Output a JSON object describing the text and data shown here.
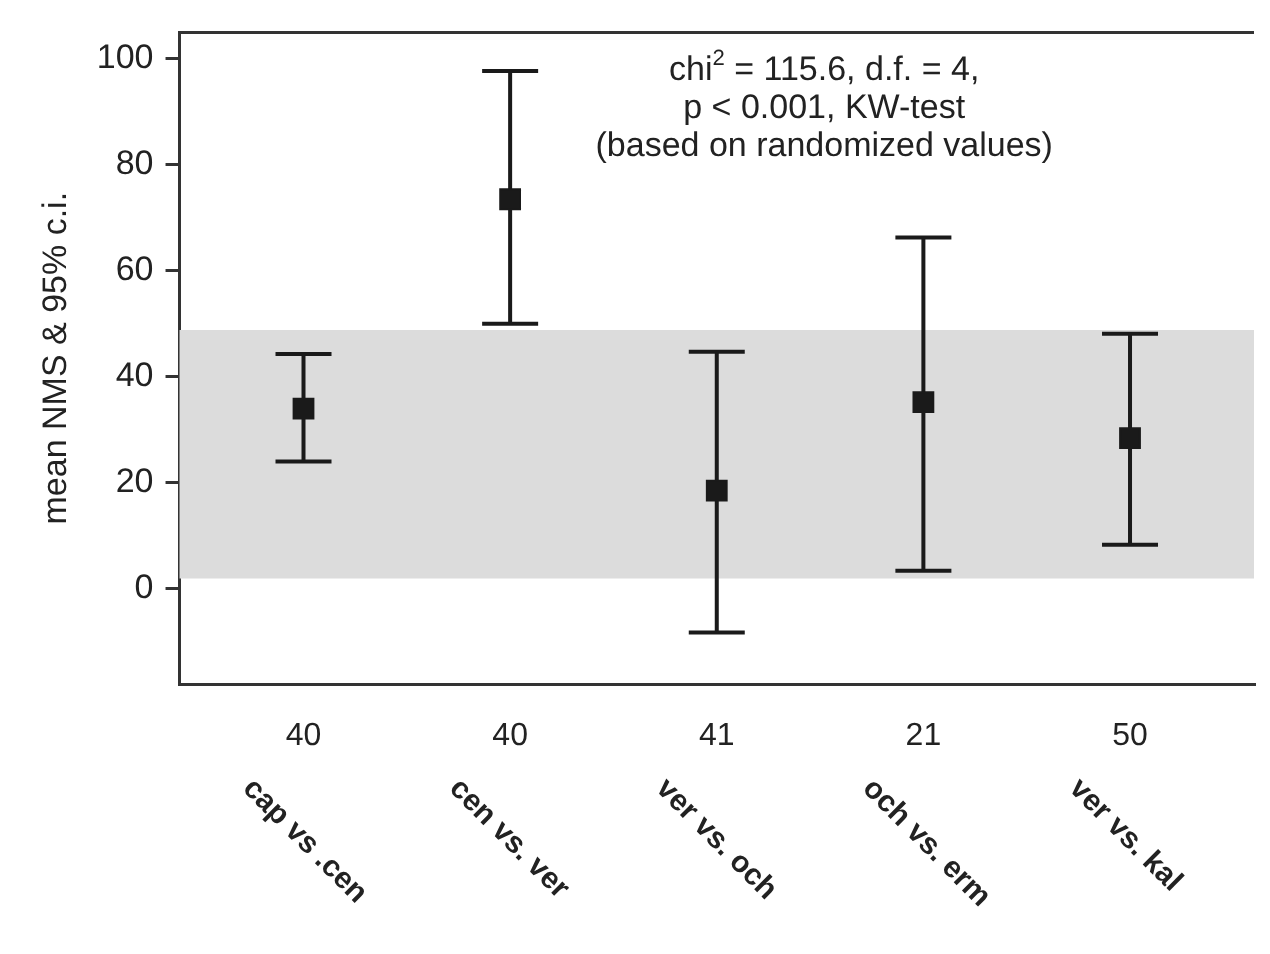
{
  "chart_data": {
    "type": "scatter",
    "ylabel": "mean NMS & 95% c.i.",
    "categories": [
      "cap vs .cen",
      "cen vs. ver",
      "ver vs. och",
      "och vs. erm",
      "ver vs. kal"
    ],
    "values": [
      34,
      73.5,
      18.5,
      35.2,
      28.4
    ],
    "errors": [
      [
        24,
        44.3
      ],
      [
        50,
        97.7
      ],
      [
        -8.3,
        44.7
      ],
      [
        3.4,
        66.3
      ],
      [
        8.3,
        48.1
      ]
    ],
    "color": "#1a1a1a",
    "marker": "square",
    "grid": false,
    "legend": false,
    "ylim": [
      -18,
      105
    ],
    "yticks": [
      0,
      20,
      40,
      60,
      80,
      100
    ],
    "bands": [
      {
        "axis": "y",
        "from": 1.9,
        "to": 48.8,
        "color": "#dcdcdc"
      }
    ],
    "annotations": [
      "chi$^{2}$ = 115.6, d.f. = 4,",
      "p < 0.001, KW-test",
      "(based on randomized values)",
      "40",
      "40",
      "41",
      "21",
      "50"
    ]
  }
}
